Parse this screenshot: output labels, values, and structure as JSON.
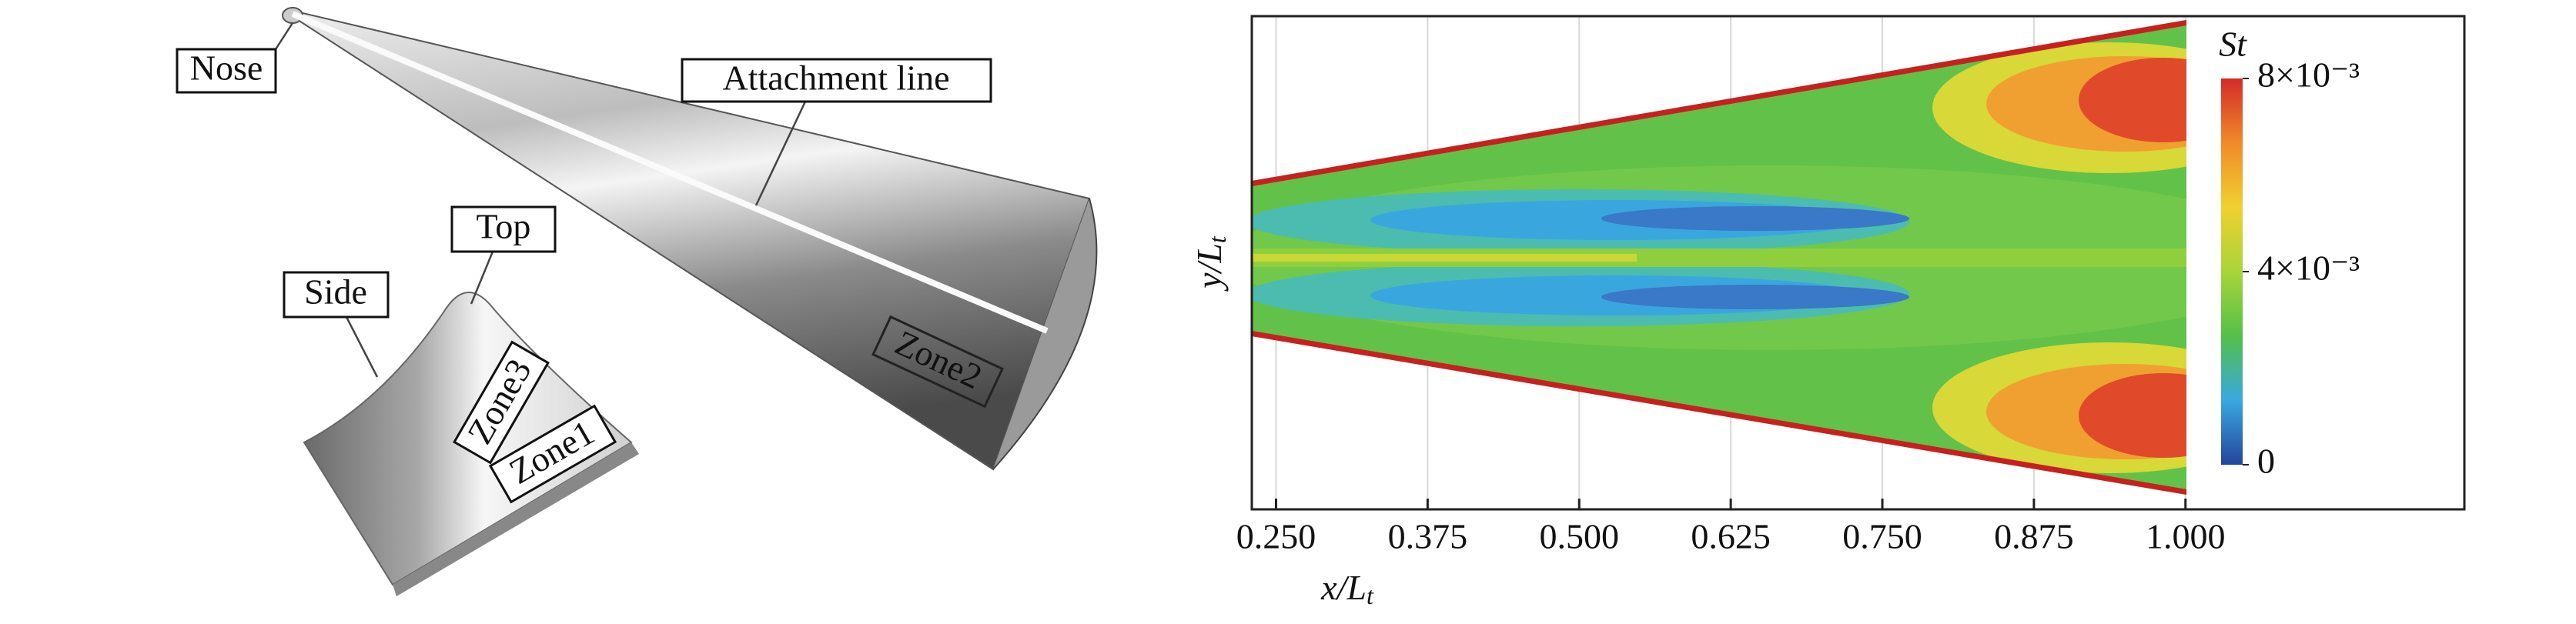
{
  "diagram": {
    "labels": {
      "nose": "Nose",
      "attachment_line": "Attachment line",
      "top": "Top",
      "side": "Side",
      "zone1": "Zone1",
      "zone2": "Zone2",
      "zone3": "Zone3"
    }
  },
  "chart_data": {
    "type": "contour",
    "xlabel": [
      "x/L",
      "t"
    ],
    "ylabel": [
      "y/L",
      "t"
    ],
    "xlim": [
      0.23,
      1.23
    ],
    "xticks": [
      {
        "value": 0.25,
        "label": "0.250"
      },
      {
        "value": 0.375,
        "label": "0.375"
      },
      {
        "value": 0.5,
        "label": "0.500"
      },
      {
        "value": 0.625,
        "label": "0.625"
      },
      {
        "value": 0.75,
        "label": "0.750"
      },
      {
        "value": 0.875,
        "label": "0.875"
      },
      {
        "value": 1.0,
        "label": "1.000"
      }
    ],
    "grid": true,
    "colorbar": {
      "title": "St",
      "lim": [
        0,
        0.008
      ],
      "ticks": [
        0,
        {
          "value": 0.004,
          "label": "4×10⁻³"
        },
        {
          "value": 0.008,
          "label": "8×10⁻³"
        }
      ],
      "colors": [
        "#24449c",
        "#3aa8e0",
        "#55bf4a",
        "#a8d43a",
        "#f0d030",
        "#f08a2a",
        "#d42a2a"
      ]
    }
  }
}
